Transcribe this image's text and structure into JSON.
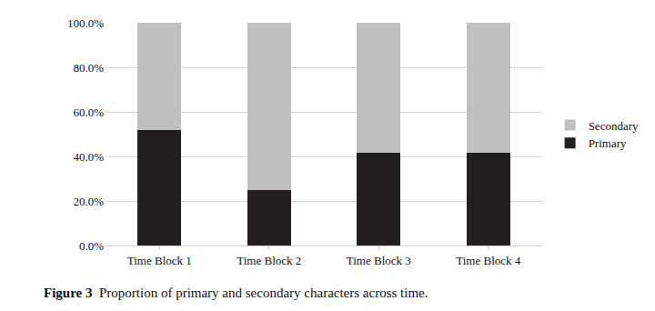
{
  "chart_data": {
    "type": "bar",
    "stacked": true,
    "title": "Figure 3 Proportion of primary and secondary characters across time.",
    "categories": [
      "Time Block 1",
      "Time Block 2",
      "Time Block 3",
      "Time Block 4"
    ],
    "series": [
      {
        "name": "Primary",
        "color": "#231f20",
        "values": [
          52,
          25,
          41.5,
          41.5
        ]
      },
      {
        "name": "Secondary",
        "color": "#bfbfbf",
        "values": [
          48,
          75,
          58.5,
          58.5
        ]
      }
    ],
    "ylim": [
      0,
      100
    ],
    "yticks": [
      {
        "value": 0,
        "label": "0.0%"
      },
      {
        "value": 20,
        "label": "20.0%"
      },
      {
        "value": 40,
        "label": "40.0%"
      },
      {
        "value": 60,
        "label": "60.0%"
      },
      {
        "value": 80,
        "label": "80.0%"
      },
      {
        "value": 100,
        "label": "100.0%"
      }
    ],
    "grid": true,
    "legend": "right"
  }
}
